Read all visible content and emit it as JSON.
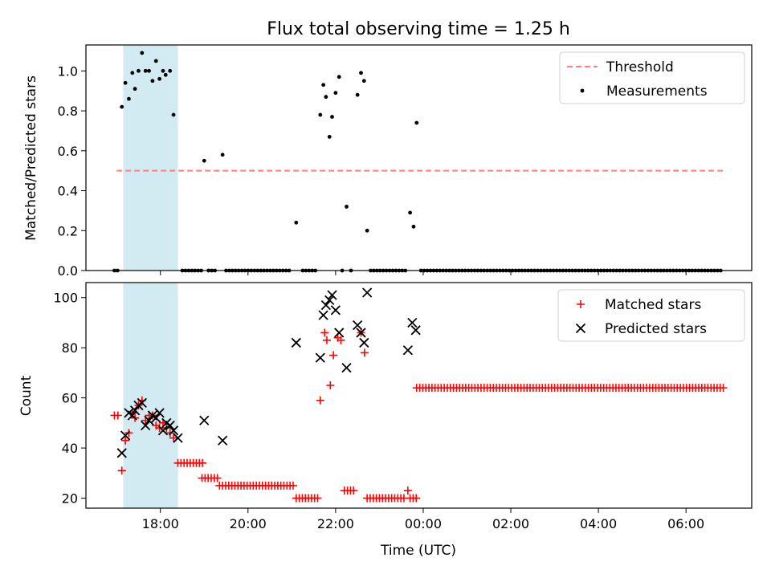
{
  "chart_data": {
    "title": "Flux total observing time = 1.25 h",
    "x_unit": "UTC time of day (hours; values above 24 are after midnight)",
    "xlim": [
      16.3,
      31.5
    ],
    "xticks": [
      {
        "v": 18,
        "label": "18:00"
      },
      {
        "v": 20,
        "label": "20:00"
      },
      {
        "v": 22,
        "label": "22:00"
      },
      {
        "v": 24,
        "label": "00:00"
      },
      {
        "v": 26,
        "label": "02:00"
      },
      {
        "v": 28,
        "label": "04:00"
      },
      {
        "v": 30,
        "label": "06:00"
      }
    ],
    "xlabel": "Time (UTC)",
    "highlight_span": {
      "x0": 17.15,
      "x1": 18.4,
      "color": "#add8e6"
    },
    "panels": [
      {
        "type": "scatter",
        "ylabel": "Matched/Predicted stars",
        "ylim": [
          0,
          1.13
        ],
        "yticks": [
          "0.0",
          "0.2",
          "0.4",
          "0.6",
          "0.8",
          "1.0"
        ],
        "threshold": {
          "value": 0.5,
          "x0": 17.0,
          "x1": 30.85,
          "color": "#ff7f7f"
        },
        "legend": {
          "position": "upper right",
          "entries": [
            "Threshold",
            "Measurements"
          ]
        },
        "series": [
          {
            "name": "Measurements",
            "marker": "dot",
            "color": "#000000",
            "points": [
              [
                17.12,
                0.82
              ],
              [
                17.2,
                0.94
              ],
              [
                17.28,
                0.86
              ],
              [
                17.36,
                0.99
              ],
              [
                17.42,
                0.91
              ],
              [
                17.5,
                1.0
              ],
              [
                17.58,
                1.09
              ],
              [
                17.66,
                1.0
              ],
              [
                17.74,
                1.0
              ],
              [
                17.82,
                0.95
              ],
              [
                17.9,
                1.05
              ],
              [
                17.98,
                0.96
              ],
              [
                18.06,
                1.0
              ],
              [
                18.12,
                0.98
              ],
              [
                18.22,
                1.0
              ],
              [
                18.3,
                0.78
              ],
              [
                19.0,
                0.55
              ],
              [
                19.42,
                0.58
              ],
              [
                21.1,
                0.24
              ],
              [
                21.65,
                0.78
              ],
              [
                21.72,
                0.93
              ],
              [
                21.78,
                0.87
              ],
              [
                21.86,
                0.67
              ],
              [
                21.92,
                0.77
              ],
              [
                22.0,
                0.89
              ],
              [
                22.08,
                0.97
              ],
              [
                22.25,
                0.32
              ],
              [
                22.5,
                0.88
              ],
              [
                22.58,
                0.99
              ],
              [
                22.65,
                0.95
              ],
              [
                22.72,
                0.2
              ],
              [
                23.7,
                0.29
              ],
              [
                23.78,
                0.22
              ],
              [
                23.85,
                0.74
              ]
            ]
          },
          {
            "name": "Measurements (zero)",
            "marker": "dot",
            "color": "#000000",
            "zero_ranges": [
              [
                16.95,
                17.08
              ],
              [
                18.5,
                19.0
              ],
              [
                19.1,
                19.3
              ],
              [
                19.5,
                20.95
              ],
              [
                21.25,
                21.55
              ],
              [
                22.15,
                22.2
              ],
              [
                22.35,
                22.42
              ],
              [
                22.8,
                23.6
              ],
              [
                23.95,
                30.85
              ]
            ],
            "zero_step": 0.072
          }
        ]
      },
      {
        "type": "scatter",
        "ylabel": "Count",
        "ylim": [
          16,
          106
        ],
        "yticks": [
          "20",
          "40",
          "60",
          "80",
          "100"
        ],
        "legend": {
          "position": "upper right",
          "entries": [
            "Matched stars",
            "Predicted stars"
          ]
        },
        "series": [
          {
            "name": "Matched stars",
            "marker": "plus",
            "color": "#ff0000",
            "points": [
              [
                16.95,
                53
              ],
              [
                17.03,
                53
              ],
              [
                17.12,
                31
              ],
              [
                17.2,
                43
              ],
              [
                17.28,
                46
              ],
              [
                17.36,
                54
              ],
              [
                17.42,
                52
              ],
              [
                17.5,
                57
              ],
              [
                17.58,
                59
              ],
              [
                17.66,
                51
              ],
              [
                17.74,
                53
              ],
              [
                17.82,
                53
              ],
              [
                17.9,
                49
              ],
              [
                17.98,
                48
              ],
              [
                18.06,
                50
              ],
              [
                18.14,
                48
              ],
              [
                18.22,
                46
              ],
              [
                18.3,
                44
              ],
              [
                21.65,
                59
              ],
              [
                21.75,
                86
              ],
              [
                21.8,
                83
              ],
              [
                21.88,
                65
              ],
              [
                21.95,
                77
              ],
              [
                22.05,
                84
              ],
              [
                22.12,
                83
              ],
              [
                22.58,
                86
              ],
              [
                22.66,
                78
              ],
              [
                23.65,
                23
              ]
            ],
            "runs": [
              {
                "y": 34,
                "x0": 18.4,
                "x1": 19.0
              },
              {
                "y": 28,
                "x0": 18.95,
                "x1": 19.3
              },
              {
                "y": 25,
                "x0": 19.35,
                "x1": 21.05
              },
              {
                "y": 20,
                "x0": 21.1,
                "x1": 21.6
              },
              {
                "y": 23,
                "x0": 22.2,
                "x1": 22.45
              },
              {
                "y": 20,
                "x0": 22.72,
                "x1": 23.6
              },
              {
                "y": 20,
                "x0": 23.7,
                "x1": 23.85
              },
              {
                "y": 64,
                "x0": 23.85,
                "x1": 30.85
              }
            ],
            "run_step": 0.07
          },
          {
            "name": "Predicted stars",
            "marker": "x",
            "color": "#000000",
            "points": [
              [
                17.12,
                38
              ],
              [
                17.2,
                45
              ],
              [
                17.28,
                54
              ],
              [
                17.36,
                53
              ],
              [
                17.42,
                55
              ],
              [
                17.5,
                57
              ],
              [
                17.58,
                58
              ],
              [
                17.66,
                49
              ],
              [
                17.74,
                51
              ],
              [
                17.82,
                53
              ],
              [
                17.9,
                52
              ],
              [
                17.98,
                54
              ],
              [
                18.06,
                47
              ],
              [
                18.14,
                50
              ],
              [
                18.22,
                49
              ],
              [
                18.3,
                47
              ],
              [
                18.4,
                44
              ],
              [
                19.0,
                51
              ],
              [
                19.42,
                43
              ],
              [
                21.1,
                82
              ],
              [
                21.65,
                76
              ],
              [
                21.72,
                93
              ],
              [
                21.78,
                97
              ],
              [
                21.86,
                99
              ],
              [
                21.92,
                101
              ],
              [
                22.0,
                95
              ],
              [
                22.08,
                86
              ],
              [
                22.25,
                72
              ],
              [
                22.5,
                89
              ],
              [
                22.58,
                86
              ],
              [
                22.65,
                82
              ],
              [
                22.72,
                102
              ],
              [
                23.65,
                79
              ],
              [
                23.75,
                90
              ],
              [
                23.83,
                87
              ]
            ]
          }
        ]
      }
    ]
  }
}
